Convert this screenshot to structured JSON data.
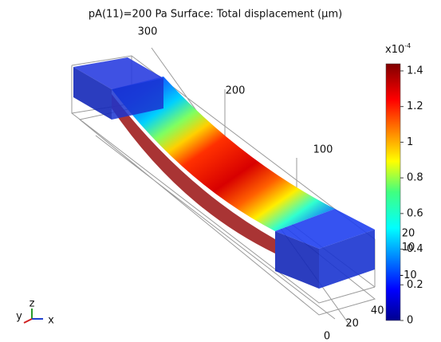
{
  "chart_data": {
    "type": "surface",
    "title": "pA(11)=200 Pa   Surface: Total displacement (µm)",
    "colorbar": {
      "colormap": "rainbow",
      "ylim": [
        0,
        1.44
      ],
      "yticks": [
        0,
        0.2,
        0.4,
        0.6,
        0.8,
        1,
        1.2,
        1.4
      ],
      "multiplier": "x10",
      "exponent": "-4"
    },
    "y_axis_ticks": [
      300,
      200,
      100
    ],
    "x_axis_ticks": [
      0,
      20,
      40
    ],
    "z_axis_ticks": [
      20,
      10,
      -10
    ],
    "triad": {
      "y": "y",
      "z": "z",
      "x": "x"
    }
  }
}
